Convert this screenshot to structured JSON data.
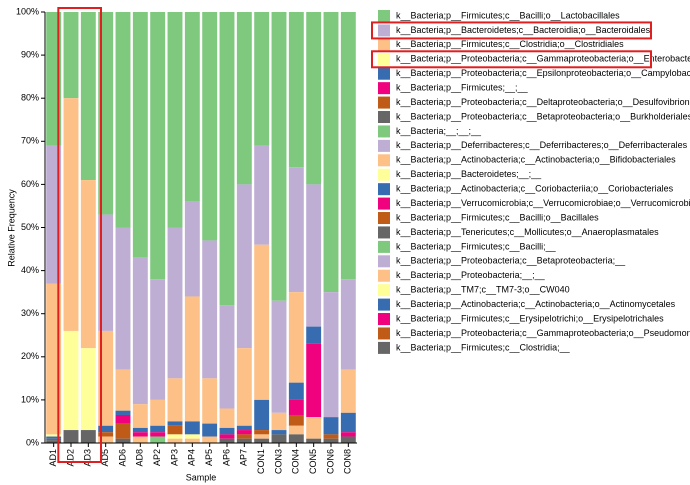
{
  "chart_data": {
    "type": "stacked_bar",
    "xlabel": "Sample",
    "ylabel": "Relative Frequency",
    "categories": [
      "AD1",
      "AD2",
      "AD3",
      "AD5",
      "AD6",
      "AD8",
      "AP2",
      "AP3",
      "AP4",
      "AP5",
      "AP6",
      "AP7",
      "CON1",
      "CON3",
      "CON4",
      "CON5",
      "CON6",
      "CON8"
    ],
    "ylim": [
      0,
      100
    ],
    "yticks": [
      {
        "value": 0,
        "label": "0%"
      },
      {
        "value": 10,
        "label": "10%"
      },
      {
        "value": 20,
        "label": "20%"
      },
      {
        "value": 30,
        "label": "30%"
      },
      {
        "value": 40,
        "label": "40%"
      },
      {
        "value": 50,
        "label": "50%"
      },
      {
        "value": 60,
        "label": "60%"
      },
      {
        "value": 70,
        "label": "70%"
      },
      {
        "value": 80,
        "label": "80%"
      },
      {
        "value": 90,
        "label": "90%"
      },
      {
        "value": 100,
        "label": "100%"
      }
    ],
    "legend": "right",
    "series": [
      {
        "name": "k__Bacteria;p__Firmicutes;c__Bacilli;o__Lactobacillales",
        "color": "#7fc97f",
        "values": [
          31,
          20,
          39,
          47,
          50,
          57,
          62,
          50,
          44,
          53,
          68,
          40,
          31,
          67,
          36,
          40,
          65,
          62
        ]
      },
      {
        "name": "k__Bacteria;p__Bacteroidetes;c__Bacteroidia;o__Bacteroidales",
        "color": "#beaed4",
        "values": [
          32,
          0,
          0,
          27,
          33,
          34,
          28,
          35,
          22,
          32,
          24,
          38,
          23,
          26,
          29,
          33,
          29,
          21
        ]
      },
      {
        "name": "k__Bacteria;p__Firmicutes;c__Clostridia;o__Clostridiales",
        "color": "#fdc086",
        "values": [
          35,
          54,
          39,
          22,
          9.5,
          5.5,
          6,
          10,
          29,
          10.5,
          4.5,
          18,
          36,
          4,
          21,
          0,
          0,
          10
        ]
      },
      {
        "name": "k__Bacteria;p__Proteobacteria;c__Gammaproteobacteria;o__Enterobacteriales",
        "color": "#ffff99",
        "values": [
          0.5,
          23,
          19,
          0,
          0,
          0,
          0,
          0,
          0,
          0,
          0,
          0,
          0,
          0,
          0,
          0,
          0,
          0
        ]
      },
      {
        "name": "k__Bacteria;p__Proteobacteria;c__Epsilonproteobacteria;o__Campylobacterales",
        "color": "#386cb0",
        "values": [
          0.5,
          0,
          0,
          1.5,
          1,
          1,
          1.5,
          1,
          3,
          3,
          1.5,
          1,
          7,
          1,
          4,
          4,
          4,
          4.5
        ]
      },
      {
        "name": "k__Bacteria;p__Firmicutes;__;__",
        "color": "#f0027f",
        "values": [
          0,
          0,
          0,
          0,
          2,
          1,
          1,
          0,
          0,
          0,
          1,
          1,
          0,
          0,
          3.5,
          0,
          0,
          1
        ]
      },
      {
        "name": "k__Bacteria;p__Proteobacteria;c__Deltaproteobacteria;o__Desulfovibrionales",
        "color": "#bf5b17",
        "values": [
          0,
          0,
          0,
          1,
          3.5,
          0,
          0,
          2,
          0,
          0,
          0,
          1,
          1,
          0,
          2.5,
          0,
          1,
          0
        ]
      },
      {
        "name": "k__Bacteria;p__Proteobacteria;c__Betaproteobacteria;o__Burkholderiales",
        "color": "#666666",
        "values": [
          0.5,
          0,
          0,
          0,
          0,
          0,
          0,
          0,
          0,
          0,
          0,
          0,
          0,
          0,
          0,
          0,
          0,
          0
        ]
      },
      {
        "name": "k__Bacteria;__;__;__",
        "color": "#7fc97f",
        "values": [
          0,
          0,
          0,
          0,
          0,
          0,
          0,
          0,
          0,
          0,
          0,
          0,
          0,
          0,
          0,
          0,
          0,
          0
        ]
      },
      {
        "name": "k__Bacteria;p__Deferribacteres;c__Deferribacteres;o__Deferribacterales",
        "color": "#beaed4",
        "values": [
          0,
          0,
          0,
          0,
          0,
          0,
          0,
          0,
          0,
          0,
          0,
          0,
          0,
          0,
          0,
          0,
          0,
          0
        ]
      },
      {
        "name": "k__Bacteria;p__Actinobacteria;c__Actinobacteria;o__Bifidobacteriales",
        "color": "#fdc086",
        "values": [
          0,
          0,
          0,
          0,
          0,
          0,
          0,
          0,
          0,
          0,
          0,
          0,
          0,
          0,
          0,
          0,
          0,
          0
        ]
      },
      {
        "name": "k__Bacteria;p__Bacteroidetes;__;__",
        "color": "#ffff99",
        "values": [
          0,
          0,
          0,
          0,
          0,
          0,
          0,
          1,
          1,
          0,
          0,
          0,
          0,
          0,
          0,
          0,
          0,
          0
        ]
      },
      {
        "name": "k__Bacteria;p__Actinobacteria;c__Coriobacteriia;o__Coriobacteriales",
        "color": "#386cb0",
        "values": [
          0,
          0,
          0,
          0,
          0,
          0,
          0,
          0,
          0,
          0,
          0,
          0,
          0,
          0,
          0,
          0,
          0,
          0
        ]
      },
      {
        "name": "k__Bacteria;p__Verrucomicrobia;c__Verrucomicrobiae;o__Verrucomicrobiales",
        "color": "#f0027f",
        "values": [
          0,
          0,
          0,
          0,
          0,
          0,
          0,
          0,
          0,
          0,
          0,
          0,
          0,
          0,
          0,
          17,
          0,
          0
        ]
      },
      {
        "name": "k__Bacteria;p__Firmicutes;c__Bacilli;o__Bacillales",
        "color": "#bf5b17",
        "values": [
          0,
          0,
          0,
          0,
          0,
          0,
          0,
          0,
          0,
          0,
          0,
          0,
          0,
          0,
          0,
          0,
          0,
          0
        ]
      },
      {
        "name": "k__Bacteria;p__Tenericutes;c__Mollicutes;o__Anaeroplasmatales",
        "color": "#666666",
        "values": [
          0,
          0,
          0,
          0,
          0,
          0,
          0,
          0,
          0,
          0,
          0,
          0,
          0,
          0,
          0,
          0,
          0,
          0
        ]
      },
      {
        "name": "k__Bacteria;p__Firmicutes;c__Bacilli;__",
        "color": "#7fc97f",
        "values": [
          0,
          0,
          0,
          0,
          0,
          0,
          1.5,
          0,
          0,
          0,
          0,
          0,
          0,
          0,
          0,
          0,
          0,
          0
        ]
      },
      {
        "name": "k__Bacteria;p__Proteobacteria;c__Betaproteobacteria;__",
        "color": "#beaed4",
        "values": [
          0,
          0,
          0,
          0,
          0,
          0,
          0,
          0,
          0,
          0,
          0,
          0,
          0,
          0,
          0,
          0,
          0,
          0
        ]
      },
      {
        "name": "k__Bacteria;p__Proteobacteria;__;__",
        "color": "#fdc086",
        "values": [
          0,
          0,
          0,
          1.5,
          0,
          1.5,
          0,
          1,
          1,
          1.5,
          0,
          0,
          1,
          0,
          2,
          5,
          0,
          0
        ]
      },
      {
        "name": "k__Bacteria;p__TM7;c__TM7-3;o__CW040",
        "color": "#ffff99",
        "values": [
          0,
          0,
          0,
          0,
          0,
          0,
          0,
          0,
          0,
          0,
          0,
          0,
          0,
          0,
          0,
          0,
          0,
          0
        ]
      },
      {
        "name": "k__Bacteria;p__Actinobacteria;c__Actinobacteria;o__Actinomycetales",
        "color": "#386cb0",
        "values": [
          0,
          0,
          0,
          0,
          0,
          0,
          0,
          0,
          0,
          0,
          0,
          0,
          0,
          0,
          0,
          0,
          0,
          0
        ]
      },
      {
        "name": "k__Bacteria;p__Firmicutes;c__Erysipelotrichi;o__Erysipelotrichales",
        "color": "#f0027f",
        "values": [
          0,
          0,
          0,
          0,
          0,
          0,
          0,
          0,
          0,
          0,
          0,
          0,
          0,
          0,
          0,
          0,
          0,
          0
        ]
      },
      {
        "name": "k__Bacteria;p__Proteobacteria;c__Gammaproteobacteria;o__Pseudomonadales",
        "color": "#bf5b17",
        "values": [
          0,
          0,
          0,
          0,
          0,
          0,
          0,
          0,
          0,
          0,
          0,
          0,
          0,
          0,
          0,
          0,
          0,
          0
        ]
      },
      {
        "name": "k__Bacteria;p__Firmicutes;c__Clostridia;__",
        "color": "#666666",
        "values": [
          0.5,
          3,
          3,
          0,
          1,
          0,
          0,
          0,
          0,
          0,
          1,
          1,
          1,
          2,
          2,
          1,
          1,
          1.5
        ]
      }
    ]
  }
}
